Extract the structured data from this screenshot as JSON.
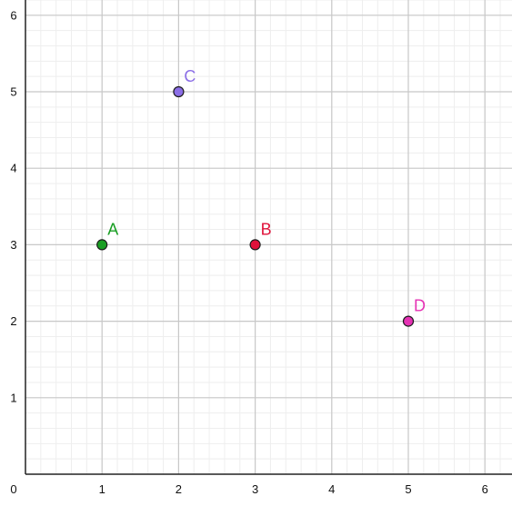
{
  "chart_data": {
    "type": "scatter",
    "title": "",
    "xlabel": "",
    "ylabel": "",
    "xlim": [
      0,
      6.35
    ],
    "ylim": [
      0,
      6.2
    ],
    "x_ticks": [
      {
        "value": 0,
        "label": "0"
      },
      {
        "value": 1,
        "label": "1"
      },
      {
        "value": 2,
        "label": "2"
      },
      {
        "value": 3,
        "label": "3"
      },
      {
        "value": 4,
        "label": "4"
      },
      {
        "value": 5,
        "label": "5"
      },
      {
        "value": 6,
        "label": "6"
      }
    ],
    "y_ticks": [
      {
        "value": 1,
        "label": "1"
      },
      {
        "value": 2,
        "label": "2"
      },
      {
        "value": 3,
        "label": "3"
      },
      {
        "value": 4,
        "label": "4"
      },
      {
        "value": 5,
        "label": "5"
      },
      {
        "value": 6,
        "label": "6"
      }
    ],
    "minor_grid_step": 0.2,
    "grid": true,
    "points": [
      {
        "label": "A",
        "x": 1,
        "y": 3,
        "color": "#1a9e24"
      },
      {
        "label": "B",
        "x": 3,
        "y": 3,
        "color": "#e0123a"
      },
      {
        "label": "C",
        "x": 2,
        "y": 5,
        "color": "#8b6ee6"
      },
      {
        "label": "D",
        "x": 5,
        "y": 2,
        "color": "#e532b4"
      }
    ]
  },
  "colors": {
    "minor_grid": "#eeeeee",
    "major_grid": "#c8c8c8",
    "axis": "#222222",
    "point_stroke": "#1c1c1c"
  }
}
